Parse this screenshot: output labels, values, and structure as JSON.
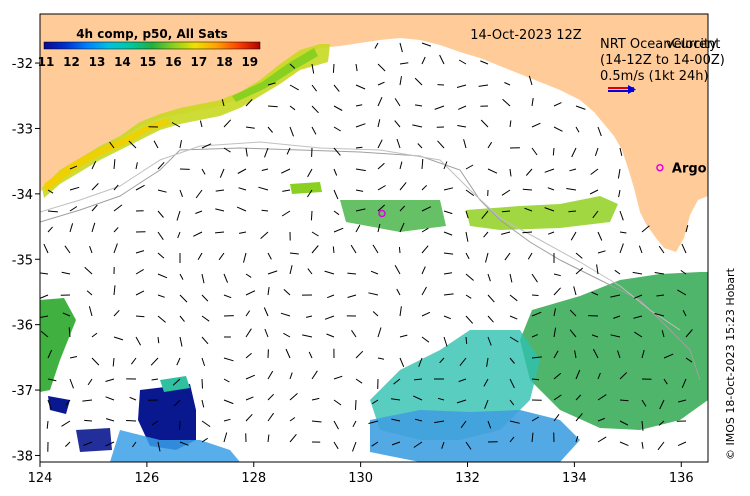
{
  "map": {
    "date_label": "14-Oct-2023 12Z",
    "colorbar": {
      "title": "4h comp, p50, All Sats",
      "ticks": [
        "11",
        "12",
        "13",
        "14",
        "15",
        "16",
        "17",
        "18",
        "19"
      ],
      "colors": [
        "#0a0a8c",
        "#0030d0",
        "#0080ff",
        "#00c0e0",
        "#00c8a0",
        "#20b040",
        "#8ad020",
        "#f0e000",
        "#ffa000",
        "#ff4000",
        "#b00000"
      ]
    },
    "velocity_legend": {
      "line1": "NRT OceanCurrent",
      "line2": "velocity",
      "line3": "(14-12Z to 14-00Z)",
      "line4": "0.5m/s (1kt 24h)"
    },
    "argo": {
      "label": "Argo",
      "color": "#e000e0",
      "float_lon": 130.4,
      "float_lat": -34.3,
      "legend_lon": 135.6,
      "legend_lat": -33.6
    },
    "axes": {
      "lon_ticks": [
        124,
        126,
        128,
        130,
        132,
        134,
        136
      ],
      "lat_ticks": [
        -32,
        -33,
        -34,
        -35,
        -36,
        -37,
        -38
      ],
      "lon_range": [
        124,
        136.5
      ],
      "lat_range": [
        -38.1,
        -31.25
      ]
    },
    "land_color": "#ffcc99",
    "copyright": "© IMOS 18-Oct-2023 15:23 Hobart"
  }
}
